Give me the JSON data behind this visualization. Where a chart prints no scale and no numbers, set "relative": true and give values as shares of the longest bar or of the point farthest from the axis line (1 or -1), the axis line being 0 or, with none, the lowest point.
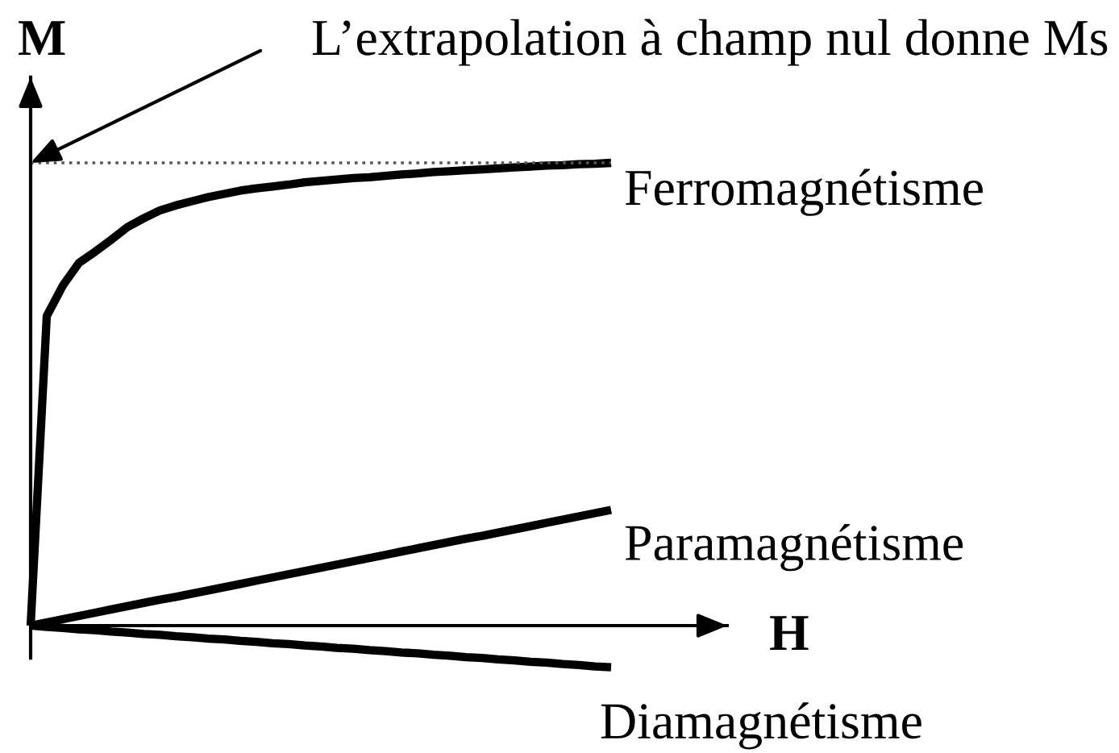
{
  "chart_data": {
    "type": "line",
    "relative": true,
    "xlabel": "H",
    "ylabel": "M",
    "categories": [
      null,
      null,
      null,
      null,
      null,
      null,
      null,
      null,
      null,
      null,
      null,
      null,
      null,
      null,
      null,
      null,
      null,
      null,
      null,
      null,
      null,
      null,
      null,
      null,
      null,
      null,
      null,
      null,
      null,
      null,
      null,
      null,
      null,
      null,
      null,
      null,
      null
    ],
    "series": [
      {
        "name": "Ferromagnétisme",
        "color": "#000000",
        "values": [
          0,
          0.669,
          0.735,
          0.784,
          0.808,
          0.834,
          0.861,
          0.88,
          0.897,
          0.908,
          0.917,
          0.926,
          0.933,
          0.94,
          0.945,
          0.949,
          0.953,
          0.958,
          0.961,
          0.964,
          0.967,
          0.969,
          0.972,
          0.975,
          0.977,
          0.98,
          0.982,
          0.984,
          0.986,
          0.988,
          0.99,
          0.992,
          0.994,
          0.995,
          0.997,
          0.998,
          1
        ]
      },
      {
        "name": "Paramagnétisme",
        "color": "#000000",
        "values": [
          0,
          0.007,
          0.014,
          0.021,
          0.028,
          0.035,
          0.042,
          0.049,
          0.056,
          0.062,
          0.069,
          0.076,
          0.083,
          0.09,
          0.097,
          0.104,
          0.111,
          0.118,
          0.125,
          0.132,
          0.139,
          0.146,
          0.153,
          0.16,
          0.167,
          0.174,
          0.181,
          0.188,
          0.194,
          0.201,
          0.208,
          0.215,
          0.222,
          0.229,
          0.236,
          0.243,
          0.25
        ]
      },
      {
        "name": "Diamagnétisme",
        "color": "#000000",
        "values": [
          0,
          -0.003,
          -0.005,
          -0.008,
          -0.01,
          -0.013,
          -0.015,
          -0.018,
          -0.02,
          -0.023,
          -0.025,
          -0.028,
          -0.03,
          -0.033,
          -0.035,
          -0.038,
          -0.04,
          -0.043,
          -0.045,
          -0.048,
          -0.05,
          -0.053,
          -0.055,
          -0.058,
          -0.06,
          -0.063,
          -0.065,
          -0.068,
          -0.07,
          -0.073,
          -0.075,
          -0.078,
          -0.08,
          -0.083,
          -0.085,
          -0.088,
          -0.09
        ]
      }
    ],
    "ref_lines": [
      {
        "axis": "y",
        "value": 1,
        "color": "#555555",
        "line_style": "dotted"
      }
    ],
    "annotations": [
      "L’extrapolation à champ nul donne Ms"
    ]
  }
}
